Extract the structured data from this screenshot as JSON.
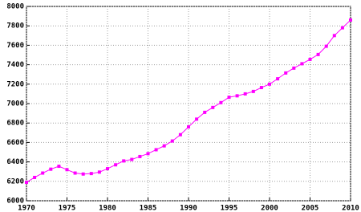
{
  "chart_data": {
    "type": "line",
    "x": [
      1970,
      1971,
      1972,
      1973,
      1974,
      1975,
      1976,
      1977,
      1978,
      1979,
      1980,
      1981,
      1982,
      1983,
      1984,
      1985,
      1986,
      1987,
      1988,
      1989,
      1990,
      1991,
      1992,
      1993,
      1994,
      1995,
      1996,
      1997,
      1998,
      1999,
      2000,
      2001,
      2002,
      2003,
      2004,
      2005,
      2006,
      2007,
      2008,
      2009,
      2010
    ],
    "series": [
      {
        "color": "#ff00ff",
        "values": [
          6190,
          6240,
          6285,
          6325,
          6355,
          6320,
          6285,
          6275,
          6280,
          6295,
          6330,
          6370,
          6410,
          6425,
          6455,
          6485,
          6525,
          6565,
          6615,
          6680,
          6760,
          6840,
          6910,
          6960,
          7010,
          7065,
          7080,
          7100,
          7125,
          7165,
          7200,
          7255,
          7315,
          7365,
          7410,
          7455,
          7505,
          7590,
          7700,
          7780,
          7860
        ]
      }
    ],
    "xlim": [
      1970,
      2010
    ],
    "xticks": [
      1970,
      1975,
      1980,
      1985,
      1990,
      1995,
      2000,
      2005,
      2010
    ],
    "ylim": [
      6000,
      8000
    ],
    "yticks": [
      6000,
      6200,
      6400,
      6600,
      6800,
      7000,
      7200,
      7400,
      7600,
      7800,
      8000
    ],
    "grid": true
  }
}
